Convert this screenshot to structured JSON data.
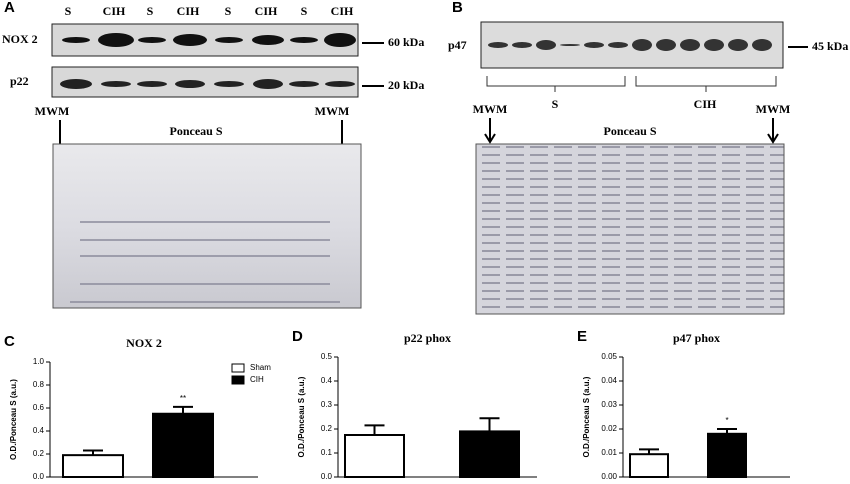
{
  "blots": [
    {
      "panel": "A",
      "lane_labels": [
        "S",
        "CIH",
        "S",
        "CIH",
        "S",
        "CIH",
        "S",
        "CIH"
      ],
      "rows": [
        {
          "label": "NOX 2",
          "marker": "60 kDa"
        },
        {
          "label": "p22",
          "marker": "20 kDa"
        }
      ],
      "mwm": "MWM",
      "stain": "Ponceau S"
    },
    {
      "panel": "B",
      "rows": [
        {
          "label": "p47",
          "marker": "45 kDa"
        }
      ],
      "groups": [
        "S",
        "CIH"
      ],
      "mwm": "MWM",
      "stain": "Ponceau S"
    }
  ],
  "chart_data": [
    {
      "type": "bar",
      "panel": "C",
      "title": "NOX 2",
      "y_label": "O.D./Ponceau S (a.u.)",
      "ylim": [
        0,
        1.0
      ],
      "yticks": [
        {
          "value": 0,
          "label": "0.0"
        },
        0.2,
        0.4,
        0.6,
        0.8,
        {
          "value": 1.0,
          "label": "1.0"
        }
      ],
      "legend": "top-right",
      "series": [
        {
          "name": "Sham",
          "color": "#ffffff",
          "values": [
            0.19
          ],
          "errors": [
            0.04
          ]
        },
        {
          "name": "CIH",
          "color": "#000000",
          "values": [
            0.55
          ],
          "errors": [
            0.06
          ],
          "annotation": "**"
        }
      ]
    },
    {
      "type": "bar",
      "panel": "D",
      "title": "p22 phox",
      "y_label": "O.D./Ponceau S (a.u.)",
      "ylim": [
        0,
        0.5
      ],
      "yticks": [
        {
          "value": 0,
          "label": "0.0"
        },
        0.1,
        0.2,
        0.3,
        0.4,
        0.5
      ],
      "series": [
        {
          "name": "Sham",
          "color": "#ffffff",
          "values": [
            0.175
          ],
          "errors": [
            0.04
          ]
        },
        {
          "name": "CIH",
          "color": "#000000",
          "values": [
            0.19
          ],
          "errors": [
            0.055
          ]
        }
      ]
    },
    {
      "type": "bar",
      "panel": "E",
      "title": "p47 phox",
      "y_label": "O.D./Ponceau S (a.u.)",
      "ylim": [
        0,
        0.05
      ],
      "yticks": [
        {
          "value": 0,
          "label": "0.00"
        },
        0.01,
        0.02,
        0.03,
        0.04,
        0.05
      ],
      "series": [
        {
          "name": "Sham",
          "color": "#ffffff",
          "values": [
            0.0095
          ],
          "errors": [
            0.002
          ]
        },
        {
          "name": "CIH",
          "color": "#000000",
          "values": [
            0.018
          ],
          "errors": [
            0.002
          ],
          "annotation": "*"
        }
      ]
    }
  ]
}
